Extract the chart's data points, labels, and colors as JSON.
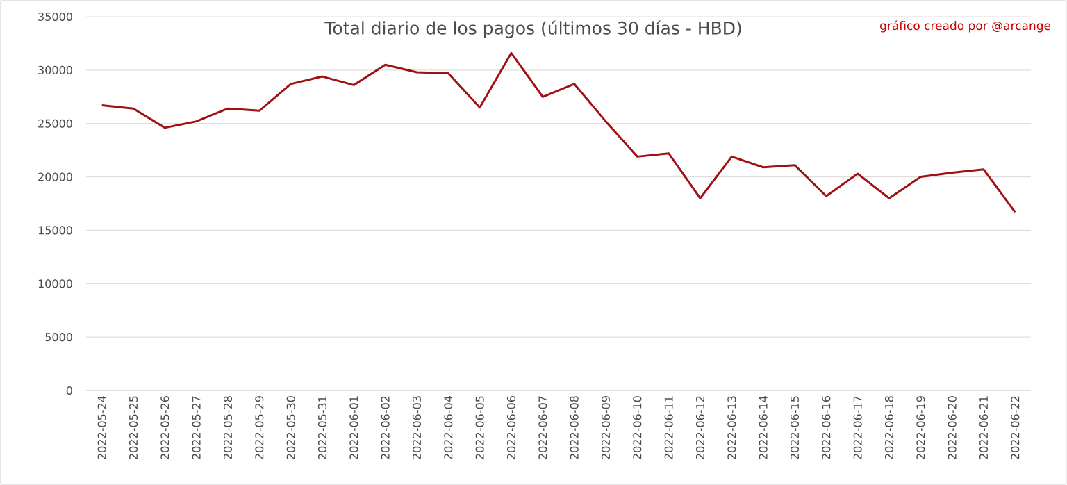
{
  "chart_data": {
    "type": "line",
    "title": "Total diario de los pagos (últimos 30 días - HBD)",
    "annotations": [
      "gráfico creado por @arcange"
    ],
    "categories": [
      "2022-05-24",
      "2022-05-25",
      "2022-05-26",
      "2022-05-27",
      "2022-05-28",
      "2022-05-29",
      "2022-05-30",
      "2022-05-31",
      "2022-06-01",
      "2022-06-02",
      "2022-06-03",
      "2022-06-04",
      "2022-06-05",
      "2022-06-06",
      "2022-06-07",
      "2022-06-08",
      "2022-06-09",
      "2022-06-10",
      "2022-06-11",
      "2022-06-12",
      "2022-06-13",
      "2022-06-14",
      "2022-06-15",
      "2022-06-16",
      "2022-06-17",
      "2022-06-18",
      "2022-06-19",
      "2022-06-20",
      "2022-06-21",
      "2022-06-22"
    ],
    "series": [
      {
        "color": "#a00f12",
        "values": [
          26700,
          26400,
          24600,
          25200,
          26400,
          26200,
          28700,
          29400,
          28600,
          30500,
          29800,
          29700,
          26500,
          31600,
          27500,
          28700,
          25200,
          21900,
          22200,
          18000,
          21900,
          20900,
          21100,
          18200,
          20300,
          18000,
          20000,
          20400,
          20700,
          16700
        ]
      }
    ],
    "ylim": [
      0,
      35000
    ],
    "yticks": [
      0,
      5000,
      10000,
      15000,
      20000,
      25000,
      30000,
      35000
    ],
    "grid": "y",
    "marker": "none",
    "line_style": "solid"
  }
}
